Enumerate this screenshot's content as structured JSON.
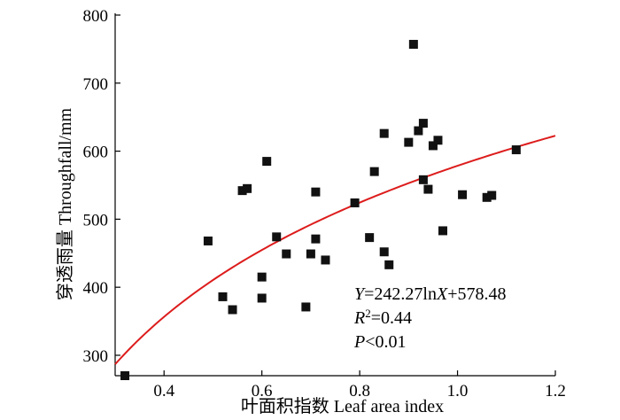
{
  "chart_data": {
    "type": "scatter",
    "xlabel": "叶面积指数 Leaf area index",
    "ylabel": "穿透雨量 Throughfall/mm",
    "xlim": [
      0.3,
      1.2
    ],
    "ylim": [
      270,
      800
    ],
    "xticks": [
      0.4,
      0.6,
      0.8,
      1.0,
      1.2
    ],
    "xtick_labels": [
      "0.4",
      "0.6",
      "0.8",
      "1.0",
      "1.2"
    ],
    "yticks": [
      300,
      400,
      500,
      600,
      700,
      800
    ],
    "ytick_labels": [
      "300",
      "400",
      "500",
      "600",
      "700",
      "800"
    ],
    "grid": false,
    "points": [
      {
        "x": 0.32,
        "y": 270
      },
      {
        "x": 0.49,
        "y": 468
      },
      {
        "x": 0.52,
        "y": 386
      },
      {
        "x": 0.54,
        "y": 367
      },
      {
        "x": 0.56,
        "y": 542
      },
      {
        "x": 0.57,
        "y": 545
      },
      {
        "x": 0.6,
        "y": 415
      },
      {
        "x": 0.6,
        "y": 384
      },
      {
        "x": 0.61,
        "y": 585
      },
      {
        "x": 0.63,
        "y": 474
      },
      {
        "x": 0.65,
        "y": 449
      },
      {
        "x": 0.69,
        "y": 371
      },
      {
        "x": 0.7,
        "y": 449
      },
      {
        "x": 0.71,
        "y": 540
      },
      {
        "x": 0.71,
        "y": 471
      },
      {
        "x": 0.73,
        "y": 440
      },
      {
        "x": 0.79,
        "y": 524
      },
      {
        "x": 0.82,
        "y": 473
      },
      {
        "x": 0.83,
        "y": 570
      },
      {
        "x": 0.85,
        "y": 626
      },
      {
        "x": 0.85,
        "y": 452
      },
      {
        "x": 0.86,
        "y": 433
      },
      {
        "x": 0.9,
        "y": 613
      },
      {
        "x": 0.91,
        "y": 757
      },
      {
        "x": 0.92,
        "y": 630
      },
      {
        "x": 0.93,
        "y": 641
      },
      {
        "x": 0.93,
        "y": 558
      },
      {
        "x": 0.94,
        "y": 544
      },
      {
        "x": 0.95,
        "y": 608
      },
      {
        "x": 0.96,
        "y": 616
      },
      {
        "x": 0.97,
        "y": 483
      },
      {
        "x": 1.01,
        "y": 536
      },
      {
        "x": 1.06,
        "y": 532
      },
      {
        "x": 1.07,
        "y": 535
      },
      {
        "x": 1.12,
        "y": 602
      }
    ],
    "fit": {
      "a": 242.27,
      "b": 578.48,
      "x_range": [
        0.3,
        1.2
      ],
      "color": "#dd1c1c"
    },
    "marker_color": "#111111",
    "annotations": {
      "equation": {
        "parts": [
          {
            "text": "Y",
            "italic": true
          },
          {
            "text": "=242.27ln",
            "italic": false
          },
          {
            "text": "X",
            "italic": true
          },
          {
            "text": "+578.48",
            "italic": false
          }
        ]
      },
      "r2": {
        "parts": [
          {
            "text": "R",
            "italic": true
          },
          {
            "text": "2",
            "italic": false,
            "sup": true
          },
          {
            "text": "=0.44",
            "italic": false
          }
        ]
      },
      "p": {
        "parts": [
          {
            "text": "P",
            "italic": true
          },
          {
            "text": "<0.01",
            "italic": false
          }
        ]
      }
    }
  }
}
